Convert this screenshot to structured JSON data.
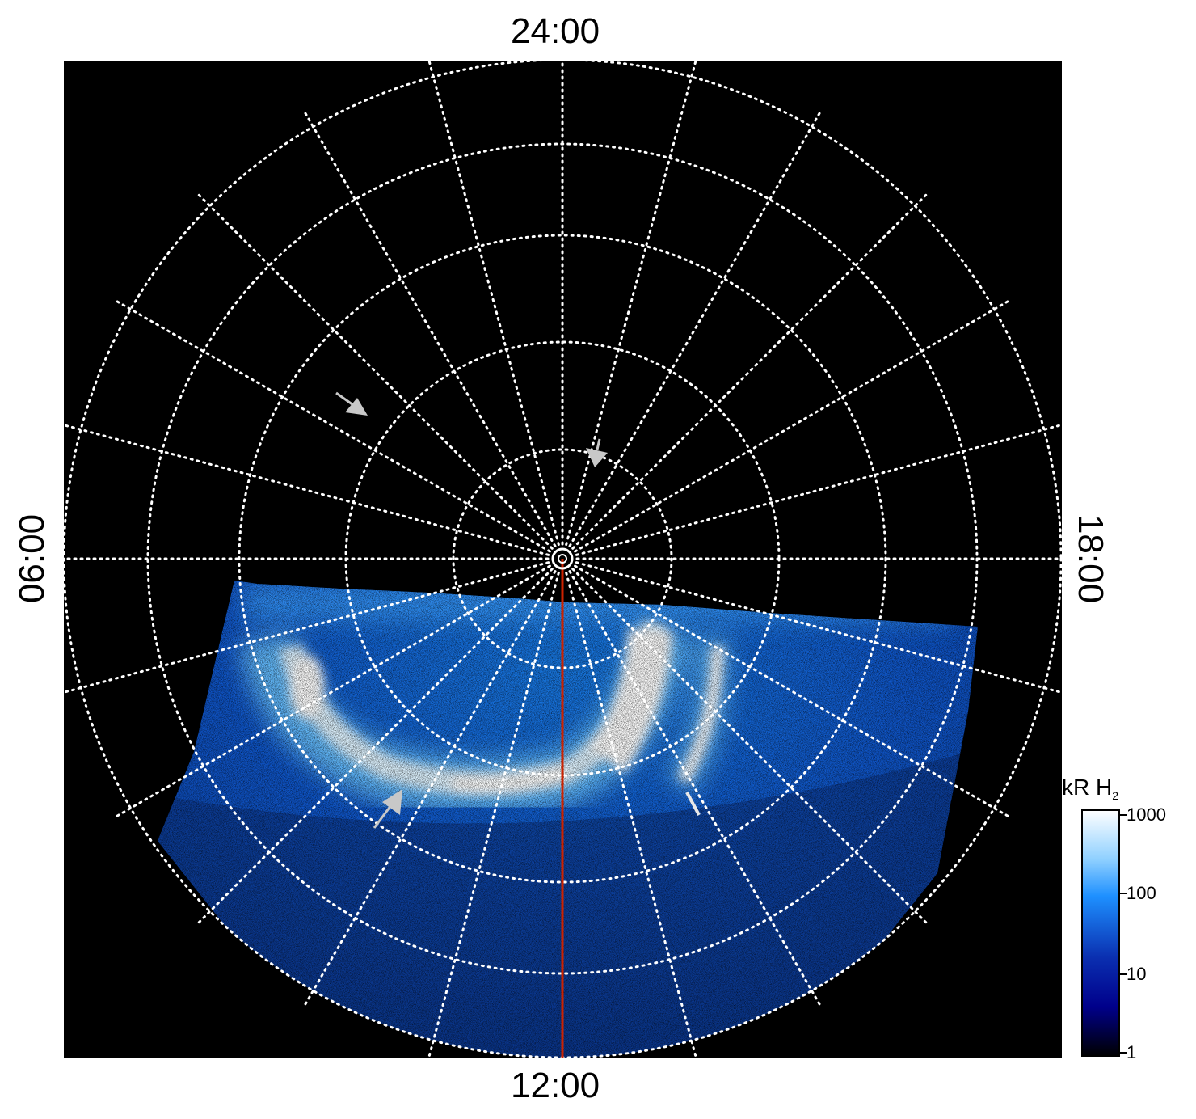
{
  "figure": {
    "local_time_labels": {
      "top": "24:00",
      "bottom": "12:00",
      "left": "06:00",
      "right": "18:00"
    },
    "colorbar": {
      "unit_main": "kR H",
      "unit_sub": "2",
      "scale": "log",
      "ticks": [
        "1000",
        "100",
        "10",
        "1"
      ],
      "colors": [
        "#ffffff",
        "#1e90ff",
        "#00008b",
        "#000000"
      ]
    },
    "colors": {
      "background": "#000000",
      "grid": "#ffffff",
      "meridian_line": "#cc2200",
      "arrows": "#c8c8c8"
    }
  }
}
